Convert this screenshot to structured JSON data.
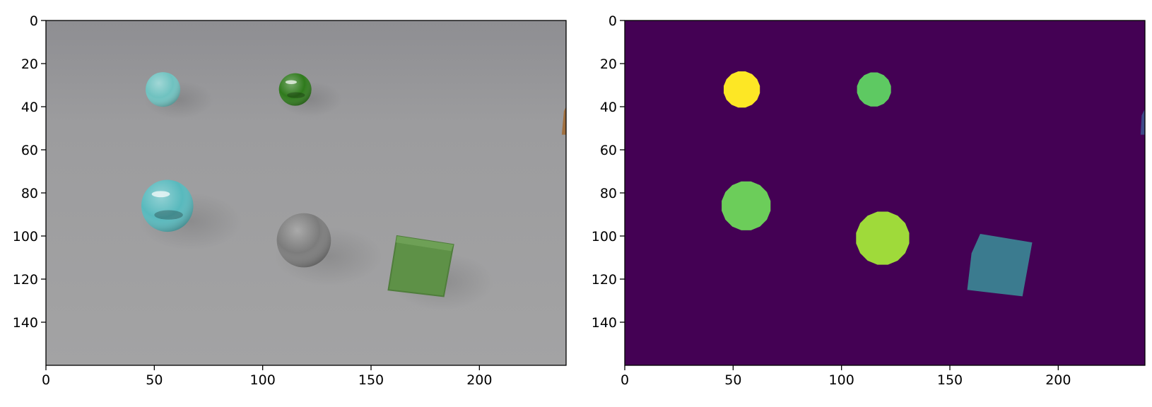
{
  "figure": {
    "panels": [
      {
        "name": "rgb-image",
        "image_extent": {
          "x": [
            0,
            240
          ],
          "y": [
            0,
            160
          ]
        },
        "x_ticks": [
          "0",
          "50",
          "100",
          "150",
          "200"
        ],
        "y_ticks": [
          "0",
          "20",
          "40",
          "60",
          "80",
          "100",
          "120",
          "140"
        ],
        "floor_color": "#9a9a9c",
        "objects": [
          {
            "shape": "sphere",
            "color": "#6fc2c0",
            "material": "rubber",
            "center": [
              54,
              32
            ],
            "radius": 8
          },
          {
            "shape": "sphere",
            "color": "#2f7a1c",
            "material": "metal",
            "center": [
              115,
              32
            ],
            "radius": 7.5
          },
          {
            "shape": "sphere",
            "color": "#58b9bd",
            "material": "metal",
            "center": [
              56,
              86
            ],
            "radius": 12
          },
          {
            "shape": "sphere",
            "color": "#7c7c7c",
            "material": "rubber",
            "center": [
              119,
              102
            ],
            "radius": 12.5
          },
          {
            "shape": "cube",
            "color": "#5e9147",
            "material": "rubber",
            "center": [
              172,
              114
            ],
            "size": 24
          },
          {
            "shape": "partial",
            "color": "#a07040",
            "material": "rubber",
            "center": [
              240,
              46
            ],
            "size": 5
          }
        ]
      },
      {
        "name": "segmentation-mask",
        "image_extent": {
          "x": [
            0,
            240
          ],
          "y": [
            0,
            160
          ]
        },
        "x_ticks": [
          "0",
          "50",
          "100",
          "150",
          "200"
        ],
        "y_ticks": [
          "0",
          "20",
          "40",
          "60",
          "80",
          "100",
          "120",
          "140"
        ],
        "background_color": "#440154",
        "objects": [
          {
            "shape": "disc",
            "color": "#fde725",
            "center": [
              54,
              32
            ],
            "radius": 8.5
          },
          {
            "shape": "disc",
            "color": "#5ec962",
            "center": [
              115,
              32
            ],
            "radius": 8
          },
          {
            "shape": "disc",
            "color": "#6ccd5a",
            "center": [
              56,
              86
            ],
            "radius": 11.5
          },
          {
            "shape": "disc",
            "color": "#9fda3a",
            "center": [
              119,
              101
            ],
            "radius": 12.5
          },
          {
            "shape": "quad",
            "color": "#3b7b8f",
            "center": [
              172,
              114
            ],
            "size": 24
          },
          {
            "shape": "sliver",
            "color": "#3e4989",
            "center": [
              238,
              47
            ],
            "size": 5
          }
        ]
      }
    ]
  }
}
